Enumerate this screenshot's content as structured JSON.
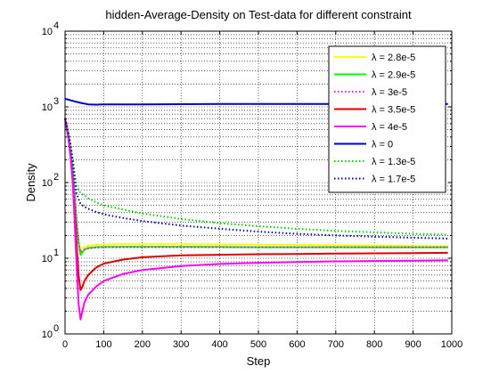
{
  "chart_data": {
    "type": "line",
    "title": "hidden-Average-Density on Test-data for different constraint",
    "xlabel": "Step",
    "ylabel": "Density",
    "xlim": [
      0,
      1000
    ],
    "ylim": [
      1,
      10000
    ],
    "yscale": "log",
    "grid": true,
    "legend_position": "top-right",
    "x_ticks": [
      0,
      100,
      200,
      300,
      400,
      500,
      600,
      700,
      800,
      900,
      1000
    ],
    "x_tick_labels": [
      "0",
      "100",
      "200",
      "300",
      "400",
      "500",
      "600",
      "700",
      "800",
      "900",
      "1000"
    ],
    "y_ticks": [
      1,
      10,
      100,
      1000,
      10000
    ],
    "y_tick_labels": [
      {
        "base": "10",
        "exp": "0"
      },
      {
        "base": "10",
        "exp": "1"
      },
      {
        "base": "10",
        "exp": "2"
      },
      {
        "base": "10",
        "exp": "3"
      },
      {
        "base": "10",
        "exp": "4"
      }
    ],
    "series": [
      {
        "name": "λ = 2.8e-5",
        "color": "#ffff00",
        "style": "solid",
        "points": [
          [
            0,
            700
          ],
          [
            5,
            550
          ],
          [
            10,
            400
          ],
          [
            15,
            260
          ],
          [
            20,
            150
          ],
          [
            25,
            70
          ],
          [
            30,
            30
          ],
          [
            35,
            16
          ],
          [
            40,
            13
          ],
          [
            45,
            13.5
          ],
          [
            50,
            14
          ],
          [
            60,
            14.5
          ],
          [
            80,
            15
          ],
          [
            100,
            15.2
          ],
          [
            150,
            15.3
          ],
          [
            200,
            15.3
          ],
          [
            300,
            15.3
          ],
          [
            400,
            15.2
          ],
          [
            500,
            15.1
          ],
          [
            600,
            15
          ],
          [
            700,
            14.8
          ],
          [
            800,
            14.7
          ],
          [
            900,
            14.5
          ],
          [
            990,
            14.4
          ]
        ]
      },
      {
        "name": "λ = 2.9e-5",
        "color": "#00ff00",
        "style": "solid",
        "points": [
          [
            0,
            700
          ],
          [
            5,
            550
          ],
          [
            10,
            400
          ],
          [
            15,
            260
          ],
          [
            20,
            150
          ],
          [
            25,
            70
          ],
          [
            30,
            30
          ],
          [
            35,
            16
          ],
          [
            40,
            11
          ],
          [
            45,
            12
          ],
          [
            50,
            13
          ],
          [
            60,
            13.6
          ],
          [
            80,
            14
          ],
          [
            100,
            14.1
          ],
          [
            150,
            14.2
          ],
          [
            200,
            14.2
          ],
          [
            300,
            14.2
          ],
          [
            400,
            14.1
          ],
          [
            500,
            14
          ],
          [
            600,
            14
          ],
          [
            700,
            14
          ],
          [
            800,
            13.9
          ],
          [
            900,
            13.9
          ],
          [
            990,
            13.9
          ]
        ]
      },
      {
        "name": "λ = 3e-5",
        "color": "#ff00ff",
        "style": "dotted",
        "points": [
          [
            0,
            700
          ],
          [
            5,
            550
          ],
          [
            10,
            400
          ],
          [
            15,
            260
          ],
          [
            20,
            150
          ],
          [
            25,
            70
          ],
          [
            30,
            30
          ],
          [
            35,
            16
          ],
          [
            40,
            12
          ],
          [
            45,
            12.5
          ],
          [
            50,
            13
          ],
          [
            60,
            13.5
          ],
          [
            80,
            13.8
          ],
          [
            100,
            14
          ],
          [
            150,
            14
          ],
          [
            200,
            14
          ],
          [
            300,
            14
          ],
          [
            400,
            14
          ],
          [
            500,
            14
          ],
          [
            600,
            14
          ],
          [
            700,
            14
          ],
          [
            800,
            14
          ],
          [
            900,
            14
          ],
          [
            990,
            14
          ]
        ]
      },
      {
        "name": "λ = 3.5e-5",
        "color": "#e00000",
        "style": "solid",
        "points": [
          [
            0,
            700
          ],
          [
            5,
            500
          ],
          [
            10,
            350
          ],
          [
            15,
            200
          ],
          [
            20,
            100
          ],
          [
            25,
            40
          ],
          [
            30,
            15
          ],
          [
            35,
            6
          ],
          [
            40,
            3.8
          ],
          [
            45,
            4.2
          ],
          [
            50,
            5
          ],
          [
            60,
            6
          ],
          [
            80,
            7.5
          ],
          [
            100,
            8.5
          ],
          [
            150,
            9.6
          ],
          [
            200,
            10.3
          ],
          [
            300,
            10.9
          ],
          [
            400,
            11.1
          ],
          [
            500,
            11.3
          ],
          [
            600,
            11.4
          ],
          [
            700,
            11.5
          ],
          [
            800,
            11.6
          ],
          [
            900,
            11.7
          ],
          [
            990,
            11.8
          ]
        ]
      },
      {
        "name": "λ = 4e-5",
        "color": "#ff00ff",
        "style": "solid",
        "points": [
          [
            0,
            700
          ],
          [
            5,
            500
          ],
          [
            10,
            350
          ],
          [
            15,
            200
          ],
          [
            20,
            100
          ],
          [
            25,
            30
          ],
          [
            30,
            8
          ],
          [
            35,
            2.5
          ],
          [
            40,
            1.55
          ],
          [
            45,
            2
          ],
          [
            50,
            2.6
          ],
          [
            60,
            3.3
          ],
          [
            80,
            4.2
          ],
          [
            100,
            5
          ],
          [
            150,
            6.2
          ],
          [
            200,
            7
          ],
          [
            300,
            7.9
          ],
          [
            400,
            8.4
          ],
          [
            500,
            8.7
          ],
          [
            600,
            8.9
          ],
          [
            700,
            9.1
          ],
          [
            800,
            9.2
          ],
          [
            900,
            9.3
          ],
          [
            990,
            9.4
          ]
        ]
      },
      {
        "name": "λ = 0",
        "color": "#0000cc",
        "style": "solid",
        "points": [
          [
            0,
            1280
          ],
          [
            20,
            1200
          ],
          [
            40,
            1130
          ],
          [
            60,
            1080
          ],
          [
            80,
            1070
          ],
          [
            100,
            1075
          ],
          [
            150,
            1080
          ],
          [
            200,
            1080
          ],
          [
            300,
            1085
          ],
          [
            400,
            1090
          ],
          [
            500,
            1090
          ],
          [
            600,
            1090
          ],
          [
            700,
            1090
          ],
          [
            800,
            1090
          ],
          [
            900,
            1090
          ],
          [
            990,
            1090
          ]
        ]
      },
      {
        "name": "λ = 1.3e-5",
        "color": "#00cc00",
        "style": "dotted",
        "points": [
          [
            0,
            700
          ],
          [
            5,
            550
          ],
          [
            10,
            420
          ],
          [
            15,
            300
          ],
          [
            20,
            200
          ],
          [
            25,
            130
          ],
          [
            30,
            90
          ],
          [
            40,
            72
          ],
          [
            50,
            68
          ],
          [
            60,
            62
          ],
          [
            80,
            55
          ],
          [
            100,
            50
          ],
          [
            150,
            44
          ],
          [
            200,
            39
          ],
          [
            300,
            33
          ],
          [
            400,
            29
          ],
          [
            500,
            26.5
          ],
          [
            600,
            24.5
          ],
          [
            700,
            23
          ],
          [
            800,
            22
          ],
          [
            900,
            21
          ],
          [
            990,
            20.5
          ]
        ]
      },
      {
        "name": "λ = 1.7e-5",
        "color": "#0000aa",
        "style": "dotted",
        "points": [
          [
            0,
            700
          ],
          [
            5,
            550
          ],
          [
            10,
            420
          ],
          [
            15,
            300
          ],
          [
            20,
            190
          ],
          [
            25,
            110
          ],
          [
            30,
            70
          ],
          [
            40,
            52
          ],
          [
            50,
            48
          ],
          [
            60,
            45
          ],
          [
            80,
            41
          ],
          [
            100,
            38
          ],
          [
            150,
            34
          ],
          [
            200,
            31
          ],
          [
            300,
            27
          ],
          [
            400,
            24.5
          ],
          [
            500,
            22.5
          ],
          [
            600,
            21
          ],
          [
            700,
            20
          ],
          [
            800,
            19.3
          ],
          [
            900,
            18.7
          ],
          [
            990,
            18.2
          ]
        ]
      }
    ]
  }
}
